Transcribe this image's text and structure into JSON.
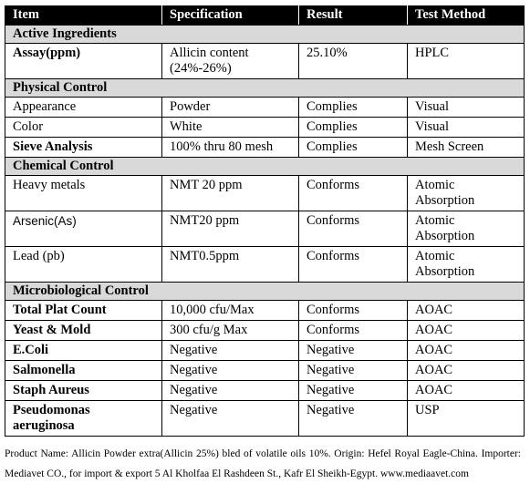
{
  "table": {
    "headers": [
      "Item",
      "Specification",
      "Result",
      "Test Method"
    ],
    "sections": [
      {
        "title": "Active Ingredients",
        "rows": [
          {
            "item": "Assay(ppm)",
            "spec": "Allicin content (24%-26%)",
            "result": "25.10%",
            "method": "HPLC",
            "bold": true
          }
        ]
      },
      {
        "title": "Physical Control",
        "rows": [
          {
            "item": "Appearance",
            "spec": "Powder",
            "result": "Complies",
            "method": "Visual",
            "bold": false
          },
          {
            "item": "Color",
            "spec": "White",
            "result": "Complies",
            "method": "Visual",
            "bold": false
          },
          {
            "item": "Sieve Analysis",
            "spec": "100% thru 80 mesh",
            "result": "Complies",
            "method": "Mesh Screen",
            "bold": true
          }
        ]
      },
      {
        "title": "Chemical Control",
        "rows": [
          {
            "item": "Heavy metals",
            "spec": "NMT 20 ppm",
            "result": "Conforms",
            "method": "Atomic Absorption",
            "bold": false
          },
          {
            "item": "Arsenic(As)",
            "spec": "NMT20 ppm",
            "result": "Conforms",
            "method": "Atomic Absorption",
            "bold": false,
            "sans": true
          },
          {
            "item": "Lead (pb)",
            "spec": "NMT0.5ppm",
            "result": "Conforms",
            "method": "Atomic Absorption",
            "bold": false
          }
        ]
      },
      {
        "title": "Microbiological Control",
        "rows": [
          {
            "item": "Total Plat Count",
            "spec": "10,000 cfu/Max",
            "result": "Conforms",
            "method": "AOAC",
            "bold": true
          },
          {
            "item": "Yeast & Mold",
            "spec": "300 cfu/g Max",
            "result": "Conforms",
            "method": "AOAC",
            "bold": true
          },
          {
            "item": "E.Coli",
            "spec": "Negative",
            "result": "Negative",
            "method": "AOAC",
            "bold": true
          },
          {
            "item": "Salmonella",
            "spec": "Negative",
            "result": "Negative",
            "method": "AOAC",
            "bold": true
          },
          {
            "item": "Staph Aureus",
            "spec": "Negative",
            "result": "Negative",
            "method": "AOAC",
            "bold": true
          },
          {
            "item": "Pseudomonas aeruginosa",
            "spec": "Negative",
            "result": "Negative",
            "method": "USP",
            "bold": true
          }
        ]
      }
    ]
  },
  "footer": {
    "text": "Product Name: Allicin Powder extra(Allicin 25%) bled of volatile oils 10%. Origin: Hefel Royal Eagle-China. Importer: Mediavet CO., for import & export 5 Al Kholfaa El Rashdeen St., Kafr El Sheikh-Egypt. www.mediaavet.com"
  }
}
